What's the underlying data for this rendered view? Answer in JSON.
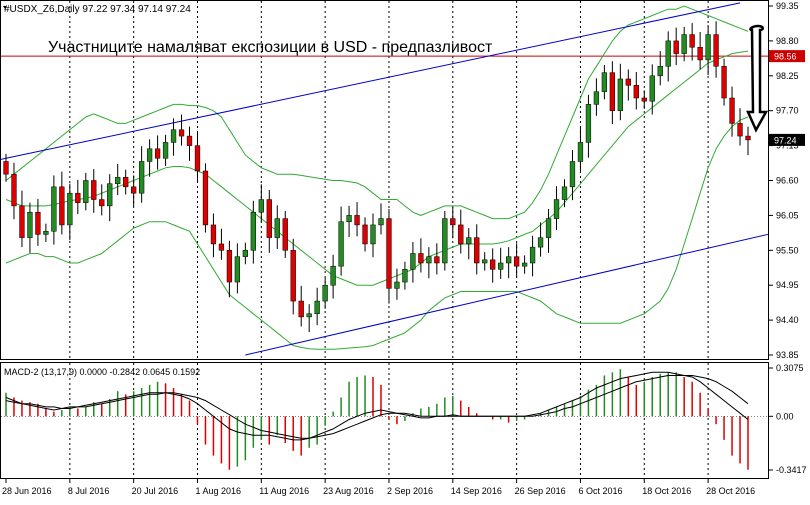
{
  "header": {
    "symbol_line": "#USDX_Z6,Daily  97.22 97.34 97.14 97.24",
    "annotation": "Участниците намаляват експозиции в USD - предпазливост"
  },
  "macd": {
    "label": "MACD-2 (13,17,9) 0.0000 -0.2842 0.0645 0.1592"
  },
  "price_axis": {
    "ticks": [
      "99.35",
      "98.80",
      "98.25",
      "97.70",
      "97.15",
      "96.60",
      "96.05",
      "95.50",
      "94.95",
      "94.40",
      "93.85"
    ],
    "tick_values": [
      99.35,
      98.8,
      98.25,
      97.7,
      97.15,
      96.6,
      96.05,
      95.5,
      94.95,
      94.4,
      93.85
    ],
    "resistance_label": "98.56",
    "current_label": "97.24"
  },
  "macd_axis": {
    "ticks": [
      "0.3075",
      "0.00",
      "-0.3417"
    ],
    "tick_values": [
      0.3075,
      0.0,
      -0.3417
    ]
  },
  "time_axis": {
    "labels": [
      "28 Jun 2016",
      "8 Jul 2016",
      "20 Jul 2016",
      "1 Aug 2016",
      "11 Aug 2016",
      "23 Aug 2016",
      "2 Sep 2016",
      "14 Sep 2016",
      "26 Sep 2016",
      "6 Oct 2016",
      "18 Oct 2016",
      "28 Oct 2016"
    ],
    "label_index": [
      0,
      8,
      16,
      24,
      32,
      40,
      48,
      56,
      64,
      72,
      80,
      88
    ]
  },
  "colors": {
    "bull": "#228B22",
    "bear": "#DD0000",
    "bands": "#33AA33",
    "channel": "#0000CC",
    "resistance": "#CC0000",
    "macd_main": "#000000",
    "macd_signal": "#000000",
    "grid": "#000000"
  },
  "chart_data": {
    "type": "candlestick",
    "title": "#USDX_Z6,Daily",
    "ohlc_last": {
      "open": 97.22,
      "high": 97.34,
      "low": 97.14,
      "close": 97.24
    },
    "ylim": [
      93.85,
      99.35
    ],
    "resistance_level": 98.56,
    "current_price": 97.24,
    "closes": [
      96.7,
      96.2,
      95.7,
      96.1,
      95.75,
      95.8,
      96.5,
      95.9,
      96.4,
      96.25,
      96.6,
      96.3,
      96.2,
      96.55,
      96.65,
      96.5,
      96.4,
      96.9,
      97.1,
      96.95,
      97.2,
      97.4,
      97.3,
      97.15,
      96.75,
      95.9,
      95.6,
      95.5,
      95.0,
      95.4,
      95.5,
      96.1,
      96.3,
      95.7,
      96.0,
      95.5,
      94.7,
      94.45,
      94.5,
      94.7,
      94.95,
      95.25,
      95.95,
      96.05,
      95.9,
      95.6,
      95.9,
      96.0,
      94.9,
      95.0,
      95.2,
      95.45,
      95.3,
      95.4,
      95.3,
      96.0,
      95.9,
      95.6,
      95.7,
      95.3,
      95.35,
      95.2,
      95.3,
      95.4,
      95.25,
      95.3,
      95.55,
      95.7,
      96.0,
      96.3,
      96.5,
      96.9,
      97.2,
      97.8,
      98.0,
      98.3,
      97.7,
      98.2,
      98.1,
      97.9,
      97.85,
      98.25,
      98.4,
      98.8,
      98.6,
      98.9,
      98.7,
      98.5,
      98.9,
      98.4,
      97.9,
      97.5,
      97.3,
      97.24
    ],
    "upper_band": [
      96.6,
      96.7,
      96.8,
      96.9,
      97.0,
      97.1,
      97.2,
      97.3,
      97.4,
      97.5,
      97.6,
      97.65,
      97.6,
      97.55,
      97.5,
      97.5,
      97.55,
      97.6,
      97.65,
      97.7,
      97.75,
      97.8,
      97.8,
      97.78,
      97.78,
      97.75,
      97.7,
      97.6,
      97.4,
      97.2,
      97.0,
      96.9,
      96.8,
      96.75,
      96.7,
      96.7,
      96.7,
      96.68,
      96.66,
      96.64,
      96.62,
      96.6,
      96.6,
      96.58,
      96.56,
      96.5,
      96.4,
      96.3,
      96.3,
      96.3,
      96.2,
      96.1,
      96.05,
      96.1,
      96.15,
      96.2,
      96.2,
      96.2,
      96.15,
      96.1,
      96.05,
      96.0,
      96.0,
      96.0,
      96.05,
      96.1,
      96.25,
      96.45,
      96.7,
      97.0,
      97.3,
      97.6,
      97.9,
      98.2,
      98.4,
      98.6,
      98.8,
      98.95,
      99.05,
      99.1,
      99.15,
      99.2,
      99.25,
      99.3,
      99.3,
      99.35,
      99.3,
      99.25,
      99.2,
      99.15,
      99.1,
      99.05,
      99.0,
      98.95
    ],
    "middle_band": [
      96.3,
      96.25,
      96.2,
      96.2,
      96.2,
      96.2,
      96.22,
      96.25,
      96.28,
      96.3,
      96.32,
      96.35,
      96.4,
      96.45,
      96.5,
      96.55,
      96.6,
      96.65,
      96.7,
      96.75,
      96.8,
      96.82,
      96.82,
      96.8,
      96.75,
      96.7,
      96.6,
      96.5,
      96.4,
      96.3,
      96.2,
      96.1,
      96.0,
      95.9,
      95.8,
      95.7,
      95.6,
      95.5,
      95.4,
      95.3,
      95.2,
      95.1,
      95.05,
      95.0,
      94.95,
      94.95,
      94.95,
      95.0,
      95.05,
      95.1,
      95.15,
      95.2,
      95.3,
      95.4,
      95.45,
      95.5,
      95.55,
      95.6,
      95.6,
      95.6,
      95.6,
      95.6,
      95.62,
      95.65,
      95.7,
      95.75,
      95.8,
      95.9,
      96.0,
      96.1,
      96.25,
      96.4,
      96.55,
      96.7,
      96.85,
      97.0,
      97.15,
      97.3,
      97.45,
      97.55,
      97.65,
      97.75,
      97.85,
      97.95,
      98.05,
      98.15,
      98.25,
      98.35,
      98.45,
      98.5,
      98.55,
      98.6,
      98.62,
      98.64
    ],
    "lower_band": [
      95.3,
      95.35,
      95.4,
      95.45,
      95.45,
      95.4,
      95.4,
      95.35,
      95.3,
      95.3,
      95.35,
      95.4,
      95.45,
      95.55,
      95.65,
      95.75,
      95.85,
      95.9,
      95.95,
      95.95,
      95.95,
      95.9,
      95.85,
      95.8,
      95.6,
      95.4,
      95.2,
      95.0,
      94.8,
      94.7,
      94.6,
      94.5,
      94.4,
      94.3,
      94.2,
      94.1,
      94.0,
      93.97,
      93.95,
      93.94,
      93.94,
      93.94,
      93.95,
      93.96,
      93.97,
      93.98,
      94.0,
      94.05,
      94.1,
      94.15,
      94.2,
      94.3,
      94.4,
      94.55,
      94.65,
      94.75,
      94.8,
      94.85,
      94.85,
      94.85,
      94.85,
      94.85,
      94.85,
      94.85,
      94.85,
      94.8,
      94.75,
      94.7,
      94.6,
      94.5,
      94.45,
      94.4,
      94.35,
      94.35,
      94.35,
      94.35,
      94.35,
      94.35,
      94.4,
      94.45,
      94.5,
      94.6,
      94.7,
      94.9,
      95.2,
      95.6,
      96.0,
      96.4,
      96.8,
      97.1,
      97.3,
      97.45,
      97.55,
      97.6
    ],
    "macd_histogram": [
      0.15,
      0.12,
      0.1,
      0.09,
      0.08,
      0.05,
      0.03,
      0.04,
      0.06,
      0.05,
      0.06,
      0.09,
      0.08,
      0.11,
      0.16,
      0.14,
      0.16,
      0.18,
      0.2,
      0.22,
      0.21,
      0.18,
      0.14,
      0.1,
      -0.05,
      -0.18,
      -0.25,
      -0.3,
      -0.34,
      -0.32,
      -0.28,
      -0.2,
      -0.15,
      -0.18,
      -0.12,
      -0.17,
      -0.22,
      -0.25,
      -0.2,
      -0.18,
      -0.06,
      0.03,
      0.12,
      0.22,
      0.25,
      0.26,
      0.25,
      0.2,
      -0.02,
      -0.05,
      -0.03,
      0.02,
      0.05,
      0.06,
      0.08,
      0.12,
      0.13,
      0.1,
      0.06,
      0.02,
      0.0,
      -0.02,
      -0.02,
      -0.04,
      -0.03,
      -0.02,
      0.0,
      0.02,
      0.04,
      0.06,
      0.08,
      0.1,
      0.13,
      0.17,
      0.2,
      0.26,
      0.28,
      0.3,
      0.25,
      0.2,
      0.22,
      0.25,
      0.27,
      0.28,
      0.28,
      0.25,
      0.22,
      0.15,
      0.05,
      -0.05,
      -0.15,
      -0.25,
      -0.3,
      -0.34
    ],
    "macd_main": [
      0.12,
      0.1,
      0.08,
      0.07,
      0.06,
      0.05,
      0.04,
      0.05,
      0.06,
      0.06,
      0.07,
      0.08,
      0.09,
      0.1,
      0.11,
      0.12,
      0.13,
      0.14,
      0.15,
      0.15,
      0.15,
      0.14,
      0.13,
      0.11,
      0.08,
      0.04,
      0.0,
      -0.04,
      -0.08,
      -0.1,
      -0.11,
      -0.12,
      -0.12,
      -0.12,
      -0.13,
      -0.14,
      -0.15,
      -0.15,
      -0.14,
      -0.12,
      -0.1,
      -0.08,
      -0.05,
      -0.02,
      0.0,
      0.02,
      0.03,
      0.04,
      0.03,
      0.02,
      0.01,
      0.0,
      -0.01,
      -0.01,
      0.0,
      0.0,
      0.01,
      0.0,
      0.0,
      0.0,
      0.0,
      0.0,
      0.0,
      0.0,
      0.0,
      0.0,
      0.01,
      0.02,
      0.04,
      0.06,
      0.08,
      0.1,
      0.12,
      0.15,
      0.18,
      0.2,
      0.22,
      0.24,
      0.25,
      0.26,
      0.27,
      0.28,
      0.28,
      0.28,
      0.27,
      0.26,
      0.25,
      0.22,
      0.18,
      0.14,
      0.1,
      0.06,
      0.02,
      -0.02
    ],
    "macd_signal": [
      0.1,
      0.09,
      0.08,
      0.08,
      0.07,
      0.06,
      0.06,
      0.05,
      0.05,
      0.06,
      0.06,
      0.07,
      0.08,
      0.09,
      0.1,
      0.11,
      0.12,
      0.13,
      0.14,
      0.14,
      0.15,
      0.15,
      0.14,
      0.13,
      0.12,
      0.1,
      0.07,
      0.04,
      0.01,
      -0.02,
      -0.05,
      -0.07,
      -0.09,
      -0.1,
      -0.11,
      -0.12,
      -0.13,
      -0.14,
      -0.14,
      -0.13,
      -0.12,
      -0.11,
      -0.09,
      -0.07,
      -0.05,
      -0.03,
      -0.01,
      0.01,
      0.02,
      0.02,
      0.02,
      0.01,
      0.0,
      0.0,
      0.0,
      0.0,
      0.0,
      0.0,
      0.0,
      0.0,
      0.0,
      0.0,
      0.0,
      0.0,
      0.0,
      0.0,
      0.0,
      0.01,
      0.02,
      0.03,
      0.05,
      0.06,
      0.08,
      0.1,
      0.12,
      0.14,
      0.16,
      0.18,
      0.2,
      0.22,
      0.23,
      0.24,
      0.25,
      0.26,
      0.26,
      0.26,
      0.26,
      0.25,
      0.24,
      0.22,
      0.19,
      0.16,
      0.12,
      0.08
    ],
    "trend_channel": {
      "upper_line": [
        {
          "index": 0,
          "value": 96.95
        },
        {
          "index": 92,
          "value": 99.4
        }
      ],
      "lower_line": [
        {
          "index": 30,
          "value": 93.85
        },
        {
          "index": 92,
          "value": 95.65
        }
      ]
    }
  }
}
